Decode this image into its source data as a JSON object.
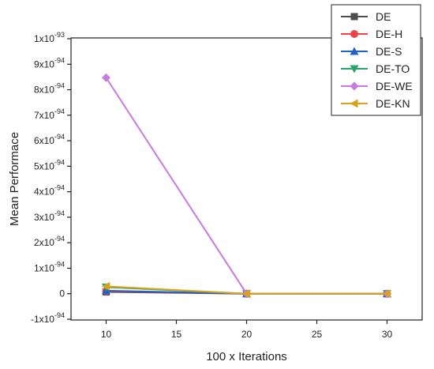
{
  "chart_data": {
    "type": "line",
    "title": "",
    "xlabel": "100 x Iterations",
    "ylabel": "Mean Performace",
    "x": [
      10,
      20,
      30
    ],
    "xlim": [
      7.5,
      32.5
    ],
    "ylim": [
      -1e-94,
      1e-93
    ],
    "x_ticks": [
      10,
      15,
      20,
      25,
      30
    ],
    "y_ticks": [
      {
        "value": -1e-94,
        "mant": "-1x10",
        "exp": "-94"
      },
      {
        "value": 0,
        "mant": "0",
        "exp": ""
      },
      {
        "value": 1e-94,
        "mant": "1x10",
        "exp": "-94"
      },
      {
        "value": 2e-94,
        "mant": "2x10",
        "exp": "-94"
      },
      {
        "value": 3e-94,
        "mant": "3x10",
        "exp": "-94"
      },
      {
        "value": 4e-94,
        "mant": "4x10",
        "exp": "-94"
      },
      {
        "value": 5e-94,
        "mant": "5x10",
        "exp": "-94"
      },
      {
        "value": 6e-94,
        "mant": "6x10",
        "exp": "-94"
      },
      {
        "value": 7e-94,
        "mant": "7x10",
        "exp": "-94"
      },
      {
        "value": 8e-94,
        "mant": "8x10",
        "exp": "-94"
      },
      {
        "value": 9e-94,
        "mant": "9x10",
        "exp": "-94"
      },
      {
        "value": 1e-93,
        "mant": "1x10",
        "exp": "-93"
      }
    ],
    "grid": false,
    "legend_position": "top-right",
    "series": [
      {
        "name": "DE",
        "color": "#4d4d4d",
        "marker": "square",
        "values": [
          7e-96,
          0,
          0
        ]
      },
      {
        "name": "DE-H",
        "color": "#f0434a",
        "marker": "circle",
        "values": [
          1e-95,
          0,
          0
        ]
      },
      {
        "name": "DE-S",
        "color": "#1f63c6",
        "marker": "triangle-up",
        "values": [
          1.2e-95,
          0,
          0
        ]
      },
      {
        "name": "DE-TO",
        "color": "#2aa56a",
        "marker": "triangle-down",
        "values": [
          2.6e-95,
          0,
          0
        ]
      },
      {
        "name": "DE-WE",
        "color": "#c77ae0",
        "marker": "diamond",
        "values": [
          8.47e-94,
          0,
          0
        ]
      },
      {
        "name": "DE-KN",
        "color": "#d9a21a",
        "marker": "triangle-left",
        "values": [
          2.9e-95,
          0,
          0
        ]
      }
    ]
  }
}
